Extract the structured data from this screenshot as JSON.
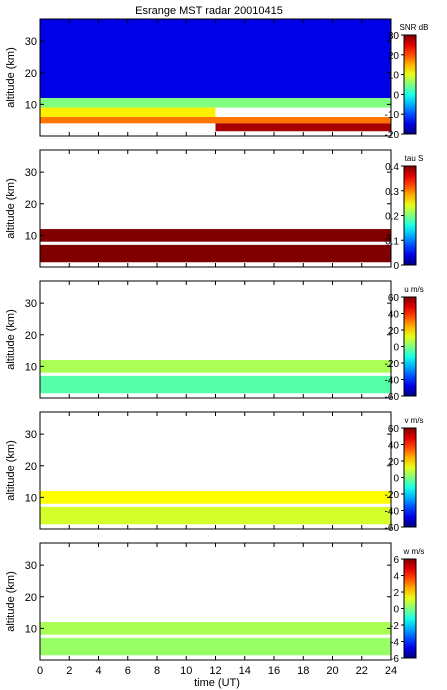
{
  "chart_data": {
    "title": "Esrange MST radar 20010415",
    "xlabel": "time (UT)",
    "xlim": [
      0,
      24
    ],
    "xticks": [
      0,
      2,
      4,
      6,
      8,
      10,
      12,
      14,
      16,
      18,
      20,
      22,
      24
    ],
    "panels": [
      {
        "type": "heatmap",
        "quantity": "SNR",
        "ylabel": "altitude (km)",
        "ylim": [
          0,
          37
        ],
        "yticks": [
          10,
          20,
          30
        ],
        "colorbar": {
          "label": "SNR dB",
          "range": [
            -20,
            30
          ],
          "ticks": [
            -20,
            -10,
            0,
            10,
            20,
            30
          ]
        },
        "layers": [
          {
            "alt_range": [
              12,
              37
            ],
            "value": -15,
            "time_range": [
              0,
              24
            ]
          },
          {
            "alt_range": [
              9,
              12
            ],
            "value": 5,
            "time_range": [
              0,
              24
            ]
          },
          {
            "alt_range": [
              6,
              9
            ],
            "value": 12,
            "time_range": [
              0,
              12
            ]
          },
          {
            "alt_range": [
              4,
              6
            ],
            "value": 18,
            "time_range": [
              0,
              24
            ]
          },
          {
            "alt_range": [
              1.5,
              4
            ],
            "value": 28,
            "time_range": [
              12,
              24
            ]
          }
        ]
      },
      {
        "type": "heatmap",
        "quantity": "tau",
        "ylabel": "altitude (km)",
        "ylim": [
          0,
          37
        ],
        "yticks": [
          10,
          20,
          30
        ],
        "colorbar": {
          "label": "tau S",
          "range": [
            0,
            0.4
          ],
          "ticks": [
            0,
            0.1,
            0.2,
            0.3,
            0.4
          ]
        },
        "layers": [
          {
            "alt_range": [
              8,
              12
            ],
            "value": 0.4,
            "time_range": [
              0,
              24
            ]
          },
          {
            "alt_range": [
              1.5,
              7
            ],
            "value": 0.4,
            "time_range": [
              0,
              24
            ]
          }
        ]
      },
      {
        "type": "heatmap",
        "quantity": "u",
        "ylabel": "altitude (km)",
        "ylim": [
          0,
          37
        ],
        "yticks": [
          10,
          20,
          30
        ],
        "colorbar": {
          "label": "u m/s",
          "range": [
            -60,
            60
          ],
          "ticks": [
            -60,
            -40,
            -20,
            0,
            20,
            40,
            60
          ]
        },
        "layers": [
          {
            "alt_range": [
              8,
              12
            ],
            "value": 5,
            "time_range": [
              0,
              24
            ]
          },
          {
            "alt_range": [
              1.5,
              7
            ],
            "value": -5,
            "time_range": [
              0,
              24
            ]
          }
        ]
      },
      {
        "type": "heatmap",
        "quantity": "v",
        "ylabel": "altitude (km)",
        "ylim": [
          0,
          37
        ],
        "yticks": [
          10,
          20,
          30
        ],
        "colorbar": {
          "label": "v m/s",
          "range": [
            -60,
            60
          ],
          "ticks": [
            -60,
            -40,
            -20,
            0,
            20,
            40,
            60
          ]
        },
        "layers": [
          {
            "alt_range": [
              8,
              12
            ],
            "value": 15,
            "time_range": [
              0,
              24
            ]
          },
          {
            "alt_range": [
              1.5,
              7
            ],
            "value": 10,
            "time_range": [
              0,
              24
            ]
          }
        ]
      },
      {
        "type": "heatmap",
        "quantity": "w",
        "ylabel": "altitude (km)",
        "ylim": [
          0,
          37
        ],
        "yticks": [
          10,
          20,
          30
        ],
        "colorbar": {
          "label": "w m/s",
          "range": [
            -6,
            6
          ],
          "ticks": [
            -6,
            -4,
            -2,
            0,
            2,
            4,
            6
          ]
        },
        "layers": [
          {
            "alt_range": [
              8,
              12
            ],
            "value": 0.5,
            "time_range": [
              0,
              24
            ]
          },
          {
            "alt_range": [
              1.5,
              7
            ],
            "value": 0.3,
            "time_range": [
              0,
              24
            ]
          }
        ]
      }
    ]
  }
}
